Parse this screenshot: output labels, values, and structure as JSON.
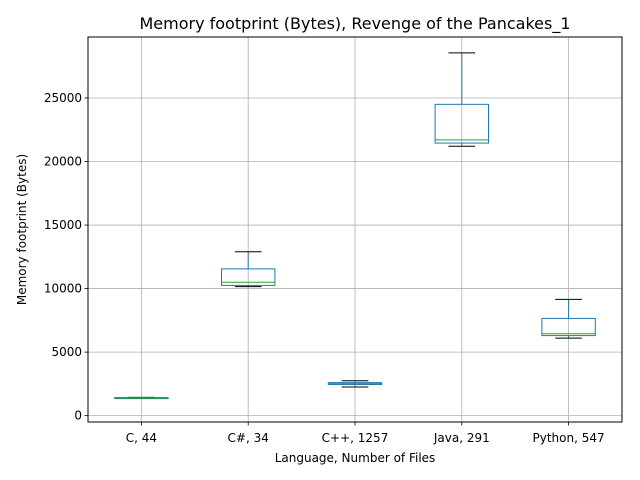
{
  "chart_data": {
    "type": "box",
    "title": "Memory footprint (Bytes), Revenge of the Pancakes_1",
    "xlabel": "Language, Number of Files",
    "ylabel": "Memory footprint (Bytes)",
    "categories": [
      "C, 44",
      "C#, 34",
      "C++, 1257",
      "Java, 291",
      "Python, 547"
    ],
    "boxes": [
      {
        "category": "C, 44",
        "whisker_low": 1350,
        "q1": 1360,
        "median": 1380,
        "q3": 1420,
        "whisker_high": 1440
      },
      {
        "category": "C#, 34",
        "whisker_low": 10150,
        "q1": 10250,
        "median": 10500,
        "q3": 11550,
        "whisker_high": 12900
      },
      {
        "category": "C++, 1257",
        "whisker_low": 2250,
        "q1": 2450,
        "median": 2520,
        "q3": 2600,
        "whisker_high": 2750
      },
      {
        "category": "Java, 291",
        "whisker_low": 21200,
        "q1": 21450,
        "median": 21700,
        "q3": 24500,
        "whisker_high": 28550
      },
      {
        "category": "Python, 547",
        "whisker_low": 6100,
        "q1": 6300,
        "median": 6450,
        "q3": 7650,
        "whisker_high": 9150
      }
    ],
    "yticks": [
      0,
      5000,
      10000,
      15000,
      20000,
      25000
    ],
    "ylim": [
      -500,
      29800
    ],
    "grid": true,
    "colors": {
      "box": "#1f77b4",
      "median": "#2ca02c",
      "whisker_cap": "#000000",
      "grid": "#b0b0b0",
      "axes": "#000000"
    }
  }
}
